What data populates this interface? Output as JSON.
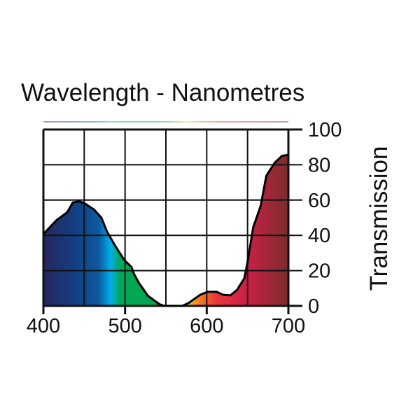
{
  "chart_data": {
    "type": "area",
    "title": "Wavelength - Nanometres",
    "xlabel": "Wavelength - Nanometres",
    "ylabel": "Transmission",
    "xlim": [
      400,
      700
    ],
    "ylim": [
      0,
      100
    ],
    "x_ticks": [
      400,
      500,
      600,
      700
    ],
    "y_ticks": [
      0,
      20,
      40,
      60,
      80,
      100
    ],
    "grid": true,
    "x_grid_step": 50,
    "y_grid_step": 20,
    "series": [
      {
        "name": "Transmission",
        "x": [
          400,
          416,
          429,
          436,
          444,
          451,
          462,
          471,
          478,
          488,
          499,
          508,
          511,
          517,
          528,
          542,
          548,
          570,
          578,
          592,
          601,
          612,
          620,
          629,
          637,
          646,
          650,
          657,
          666,
          673,
          683,
          692,
          700
        ],
        "y": [
          40.7,
          48.6,
          53,
          58.6,
          59.3,
          58,
          54.6,
          50,
          42,
          34,
          26,
          22,
          18,
          13,
          5.7,
          1,
          0,
          0,
          1.7,
          6.3,
          8,
          8,
          6.3,
          6,
          9,
          15.6,
          25,
          44.7,
          56.6,
          73.8,
          81,
          85,
          85.7
        ]
      }
    ],
    "fill_spectrum": [
      {
        "nm": 400,
        "color": "#27265e"
      },
      {
        "nm": 440,
        "color": "#123f83"
      },
      {
        "nm": 468,
        "color": "#0b5aa0"
      },
      {
        "nm": 482,
        "color": "#00aeea"
      },
      {
        "nm": 492,
        "color": "#00a86a"
      },
      {
        "nm": 500,
        "color": "#00a651"
      },
      {
        "nm": 548,
        "color": "#00a651"
      },
      {
        "nm": 575,
        "color": "#f6d321"
      },
      {
        "nm": 592,
        "color": "#f07a24"
      },
      {
        "nm": 612,
        "color": "#e8383a"
      },
      {
        "nm": 648,
        "color": "#cc1f46"
      },
      {
        "nm": 700,
        "color": "#7a2d2d"
      }
    ]
  }
}
